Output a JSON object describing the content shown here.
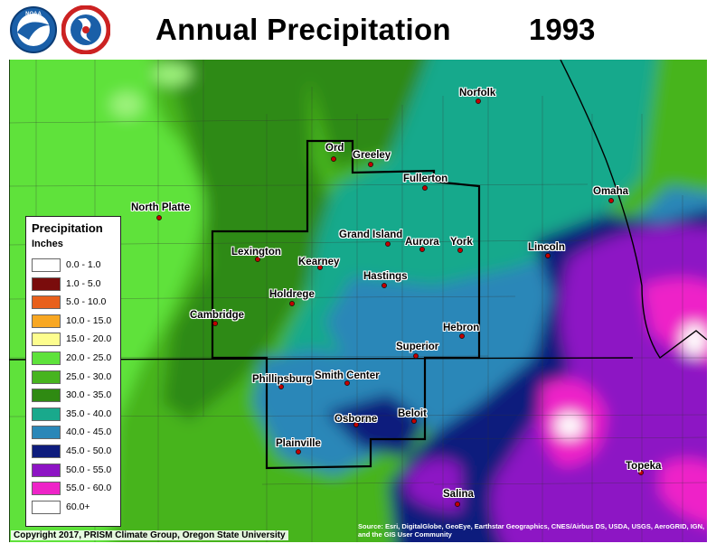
{
  "header": {
    "title": "Annual Precipitation",
    "year": "1993"
  },
  "colors": {
    "c20_25": "#5ee23b",
    "c25_30": "#47b41f",
    "c30_35": "#2f8a12",
    "c35_40": "#19a98c",
    "c40_45": "#2a87b8",
    "c45_50": "#0e1c7d",
    "c50_55": "#8d14c4",
    "c55_60": "#ee24c8",
    "c60_plus": "#ffffff",
    "boundary": "#000000"
  },
  "legend": {
    "title": "Precipitation",
    "units": "Inches",
    "items": [
      {
        "label": "0.0 - 1.0",
        "color": "#ffffff"
      },
      {
        "label": "1.0 - 5.0",
        "color": "#7a0c0c"
      },
      {
        "label": "5.0 - 10.0",
        "color": "#e8601c"
      },
      {
        "label": "10.0 - 15.0",
        "color": "#f8a722"
      },
      {
        "label": "15.0 - 20.0",
        "color": "#fdfd8e"
      },
      {
        "label": "20.0 - 25.0",
        "color": "#5ee23b"
      },
      {
        "label": "25.0 - 30.0",
        "color": "#47b41f"
      },
      {
        "label": "30.0 - 35.0",
        "color": "#2f8a12"
      },
      {
        "label": "35.0 - 40.0",
        "color": "#19a98c"
      },
      {
        "label": "40.0 - 45.0",
        "color": "#2a87b8"
      },
      {
        "label": "45.0 - 50.0",
        "color": "#0e1c7d"
      },
      {
        "label": "50.0 - 55.0",
        "color": "#8d14c4"
      },
      {
        "label": "55.0 - 60.0",
        "color": "#ee24c8"
      },
      {
        "label": "60.0+",
        "color": "#ffffff"
      }
    ]
  },
  "cities": [
    {
      "name": "Norfolk"
    },
    {
      "name": "Ord"
    },
    {
      "name": "Greeley"
    },
    {
      "name": "Fullerton"
    },
    {
      "name": "North Platte"
    },
    {
      "name": "Omaha"
    },
    {
      "name": "Grand Island"
    },
    {
      "name": "Aurora"
    },
    {
      "name": "York"
    },
    {
      "name": "Lexington"
    },
    {
      "name": "Lincoln"
    },
    {
      "name": "Kearney"
    },
    {
      "name": "Hastings"
    },
    {
      "name": "Holdrege"
    },
    {
      "name": "Cambridge"
    },
    {
      "name": "Hebron"
    },
    {
      "name": "Superior"
    },
    {
      "name": "Phillipsburg"
    },
    {
      "name": "Smith Center"
    },
    {
      "name": "Osborne"
    },
    {
      "name": "Beloit"
    },
    {
      "name": "Plainville"
    },
    {
      "name": "Topeka"
    },
    {
      "name": "Salina"
    }
  ],
  "footer": {
    "copyright": "Copyright 2017, PRISM Climate Group, Oregon State University",
    "source": "Source: Esri, DigitalGlobe, GeoEye, Earthstar Geographics, CNES/Airbus DS, USDA, USGS, AeroGRID, IGN, and the GIS User Community"
  }
}
